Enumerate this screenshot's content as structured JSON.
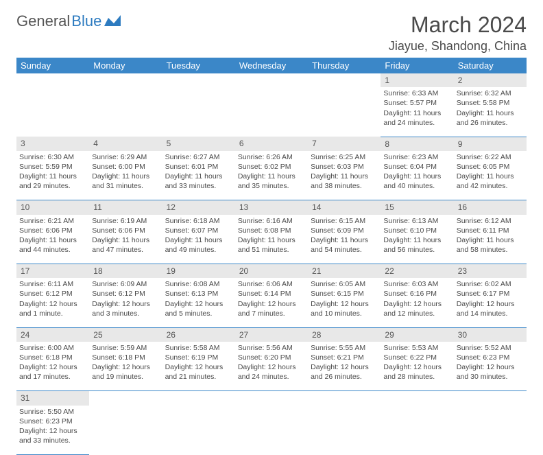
{
  "logo": {
    "text1": "General",
    "text2": "Blue"
  },
  "title": "March 2024",
  "location": "Jiayue, Shandong, China",
  "colors": {
    "header_bg": "#3b87c8",
    "header_text": "#ffffff",
    "daynum_bg": "#e8e8e8",
    "border": "#3b87c8",
    "text": "#4a4a4a",
    "logo_blue": "#2d7bc0"
  },
  "weekdays": [
    "Sunday",
    "Monday",
    "Tuesday",
    "Wednesday",
    "Thursday",
    "Friday",
    "Saturday"
  ],
  "weeks": [
    [
      null,
      null,
      null,
      null,
      null,
      {
        "n": "1",
        "sunrise": "6:33 AM",
        "sunset": "5:57 PM",
        "daylight": "11 hours and 24 minutes."
      },
      {
        "n": "2",
        "sunrise": "6:32 AM",
        "sunset": "5:58 PM",
        "daylight": "11 hours and 26 minutes."
      }
    ],
    [
      {
        "n": "3",
        "sunrise": "6:30 AM",
        "sunset": "5:59 PM",
        "daylight": "11 hours and 29 minutes."
      },
      {
        "n": "4",
        "sunrise": "6:29 AM",
        "sunset": "6:00 PM",
        "daylight": "11 hours and 31 minutes."
      },
      {
        "n": "5",
        "sunrise": "6:27 AM",
        "sunset": "6:01 PM",
        "daylight": "11 hours and 33 minutes."
      },
      {
        "n": "6",
        "sunrise": "6:26 AM",
        "sunset": "6:02 PM",
        "daylight": "11 hours and 35 minutes."
      },
      {
        "n": "7",
        "sunrise": "6:25 AM",
        "sunset": "6:03 PM",
        "daylight": "11 hours and 38 minutes."
      },
      {
        "n": "8",
        "sunrise": "6:23 AM",
        "sunset": "6:04 PM",
        "daylight": "11 hours and 40 minutes."
      },
      {
        "n": "9",
        "sunrise": "6:22 AM",
        "sunset": "6:05 PM",
        "daylight": "11 hours and 42 minutes."
      }
    ],
    [
      {
        "n": "10",
        "sunrise": "6:21 AM",
        "sunset": "6:06 PM",
        "daylight": "11 hours and 44 minutes."
      },
      {
        "n": "11",
        "sunrise": "6:19 AM",
        "sunset": "6:06 PM",
        "daylight": "11 hours and 47 minutes."
      },
      {
        "n": "12",
        "sunrise": "6:18 AM",
        "sunset": "6:07 PM",
        "daylight": "11 hours and 49 minutes."
      },
      {
        "n": "13",
        "sunrise": "6:16 AM",
        "sunset": "6:08 PM",
        "daylight": "11 hours and 51 minutes."
      },
      {
        "n": "14",
        "sunrise": "6:15 AM",
        "sunset": "6:09 PM",
        "daylight": "11 hours and 54 minutes."
      },
      {
        "n": "15",
        "sunrise": "6:13 AM",
        "sunset": "6:10 PM",
        "daylight": "11 hours and 56 minutes."
      },
      {
        "n": "16",
        "sunrise": "6:12 AM",
        "sunset": "6:11 PM",
        "daylight": "11 hours and 58 minutes."
      }
    ],
    [
      {
        "n": "17",
        "sunrise": "6:11 AM",
        "sunset": "6:12 PM",
        "daylight": "12 hours and 1 minute."
      },
      {
        "n": "18",
        "sunrise": "6:09 AM",
        "sunset": "6:12 PM",
        "daylight": "12 hours and 3 minutes."
      },
      {
        "n": "19",
        "sunrise": "6:08 AM",
        "sunset": "6:13 PM",
        "daylight": "12 hours and 5 minutes."
      },
      {
        "n": "20",
        "sunrise": "6:06 AM",
        "sunset": "6:14 PM",
        "daylight": "12 hours and 7 minutes."
      },
      {
        "n": "21",
        "sunrise": "6:05 AM",
        "sunset": "6:15 PM",
        "daylight": "12 hours and 10 minutes."
      },
      {
        "n": "22",
        "sunrise": "6:03 AM",
        "sunset": "6:16 PM",
        "daylight": "12 hours and 12 minutes."
      },
      {
        "n": "23",
        "sunrise": "6:02 AM",
        "sunset": "6:17 PM",
        "daylight": "12 hours and 14 minutes."
      }
    ],
    [
      {
        "n": "24",
        "sunrise": "6:00 AM",
        "sunset": "6:18 PM",
        "daylight": "12 hours and 17 minutes."
      },
      {
        "n": "25",
        "sunrise": "5:59 AM",
        "sunset": "6:18 PM",
        "daylight": "12 hours and 19 minutes."
      },
      {
        "n": "26",
        "sunrise": "5:58 AM",
        "sunset": "6:19 PM",
        "daylight": "12 hours and 21 minutes."
      },
      {
        "n": "27",
        "sunrise": "5:56 AM",
        "sunset": "6:20 PM",
        "daylight": "12 hours and 24 minutes."
      },
      {
        "n": "28",
        "sunrise": "5:55 AM",
        "sunset": "6:21 PM",
        "daylight": "12 hours and 26 minutes."
      },
      {
        "n": "29",
        "sunrise": "5:53 AM",
        "sunset": "6:22 PM",
        "daylight": "12 hours and 28 minutes."
      },
      {
        "n": "30",
        "sunrise": "5:52 AM",
        "sunset": "6:23 PM",
        "daylight": "12 hours and 30 minutes."
      }
    ],
    [
      {
        "n": "31",
        "sunrise": "5:50 AM",
        "sunset": "6:23 PM",
        "daylight": "12 hours and 33 minutes."
      },
      null,
      null,
      null,
      null,
      null,
      null
    ]
  ]
}
